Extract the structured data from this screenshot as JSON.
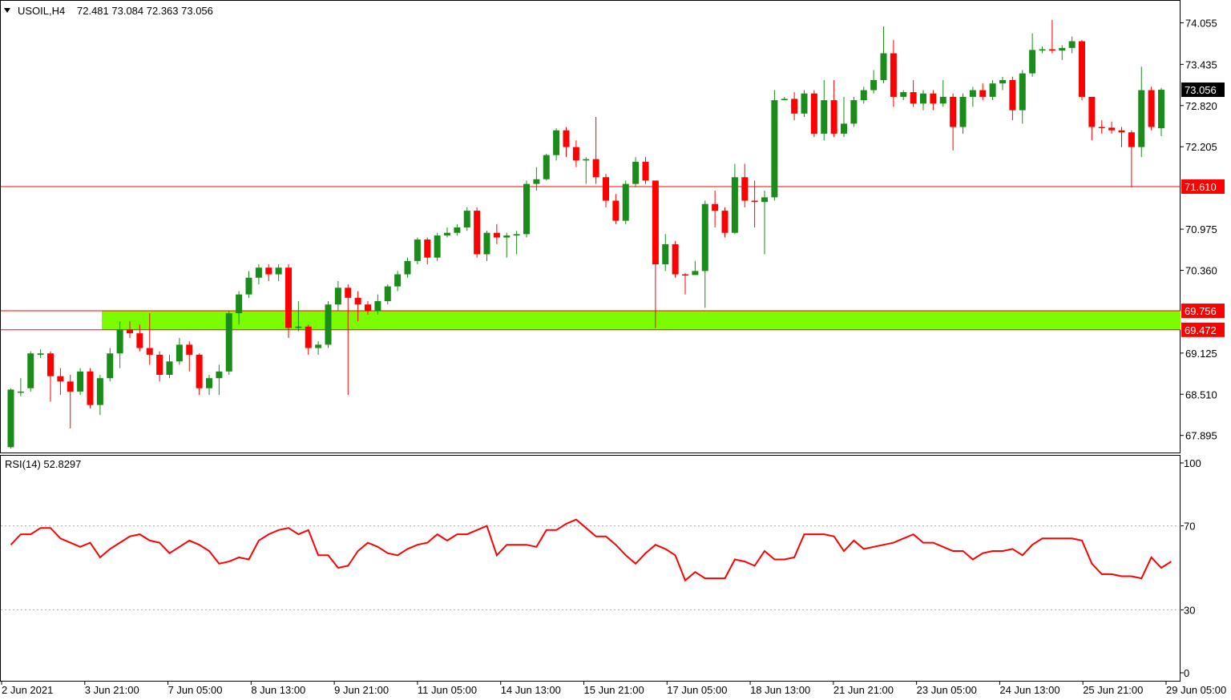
{
  "header": {
    "symbol": "USOIL,H4",
    "ohlc": "72.481 73.084 72.363 73.056"
  },
  "indicator": {
    "label": "RSI(14) 52.8297"
  },
  "colors": {
    "bull": "#1a8c1a",
    "bear": "#ff0000",
    "zone": "#7cfc00",
    "level_line": "#ff0000",
    "rsi_line": "#ff0000",
    "current_price_tag": "#000000"
  },
  "chart_data": [
    {
      "type": "candlestick",
      "title": "USOIL,H4",
      "price_axis": {
        "ticks": [
          "74.055",
          "73.435",
          "72.820",
          "72.205",
          "70.975",
          "70.360",
          "69.125",
          "68.510",
          "67.895"
        ],
        "range": [
          67.7,
          74.3
        ]
      },
      "time_axis": {
        "labels": [
          "2 Jun 2021",
          "3 Jun 21:00",
          "7 Jun 05:00",
          "8 Jun 13:00",
          "9 Jun 21:00",
          "11 Jun 05:00",
          "14 Jun 13:00",
          "15 Jun 21:00",
          "17 Jun 05:00",
          "18 Jun 13:00",
          "21 Jun 21:00",
          "23 Jun 05:00",
          "24 Jun 13:00",
          "25 Jun 21:00",
          "29 Jun 05:00"
        ]
      },
      "levels": [
        {
          "price": 71.61,
          "label": "71.610"
        }
      ],
      "zone": {
        "high": 69.756,
        "low": 69.472,
        "high_label": "69.756",
        "low_label": "69.472"
      },
      "current_price": {
        "value": 73.056,
        "label": "73.056"
      },
      "candles": [
        [
          67.72,
          68.58,
          67.7,
          68.6
        ],
        [
          68.55,
          68.55,
          68.48,
          68.75
        ],
        [
          68.6,
          69.12,
          68.55,
          69.15
        ],
        [
          69.1,
          69.12,
          69.05,
          69.18
        ],
        [
          69.12,
          68.78,
          68.4,
          69.15
        ],
        [
          68.78,
          68.7,
          68.5,
          68.9
        ],
        [
          68.7,
          68.55,
          68.0,
          68.8
        ],
        [
          68.55,
          68.85,
          68.5,
          68.9
        ],
        [
          68.85,
          68.35,
          68.3,
          68.9
        ],
        [
          68.35,
          68.75,
          68.2,
          68.8
        ],
        [
          68.75,
          69.12,
          68.7,
          69.2
        ],
        [
          69.12,
          69.48,
          68.9,
          69.6
        ],
        [
          69.48,
          69.42,
          69.35,
          69.6
        ],
        [
          69.42,
          69.2,
          69.15,
          69.55
        ],
        [
          69.2,
          69.1,
          68.95,
          69.72
        ],
        [
          69.1,
          68.8,
          68.7,
          69.15
        ],
        [
          68.8,
          69.0,
          68.75,
          69.1
        ],
        [
          69.0,
          69.25,
          68.95,
          69.35
        ],
        [
          69.25,
          69.1,
          68.85,
          69.3
        ],
        [
          69.1,
          68.6,
          68.5,
          69.12
        ],
        [
          68.6,
          68.75,
          68.5,
          68.8
        ],
        [
          68.75,
          68.85,
          68.5,
          68.95
        ],
        [
          68.85,
          69.72,
          68.8,
          69.75
        ],
        [
          69.72,
          70.0,
          69.55,
          70.05
        ],
        [
          70.0,
          70.25,
          69.95,
          70.35
        ],
        [
          70.25,
          70.4,
          70.15,
          70.45
        ],
        [
          70.4,
          70.3,
          70.2,
          70.45
        ],
        [
          70.3,
          70.4,
          70.2,
          70.45
        ],
        [
          70.4,
          69.5,
          69.35,
          70.45
        ],
        [
          69.5,
          69.52,
          69.45,
          69.9
        ],
        [
          69.52,
          69.2,
          69.1,
          69.55
        ],
        [
          69.2,
          69.25,
          69.1,
          69.3
        ],
        [
          69.25,
          69.85,
          69.2,
          69.9
        ],
        [
          69.85,
          70.1,
          69.75,
          70.2
        ],
        [
          70.1,
          69.95,
          68.5,
          70.15
        ],
        [
          69.95,
          69.85,
          69.6,
          70.05
        ],
        [
          69.85,
          69.75,
          69.7,
          69.9
        ],
        [
          69.75,
          69.9,
          69.7,
          70.0
        ],
        [
          69.9,
          70.12,
          69.85,
          70.15
        ],
        [
          70.12,
          70.3,
          70.05,
          70.35
        ],
        [
          70.3,
          70.5,
          70.25,
          70.55
        ],
        [
          70.5,
          70.82,
          70.45,
          70.85
        ],
        [
          70.82,
          70.55,
          70.45,
          70.85
        ],
        [
          70.55,
          70.88,
          70.5,
          70.92
        ],
        [
          70.88,
          70.92,
          70.85,
          71.0
        ],
        [
          70.92,
          71.0,
          70.88,
          71.05
        ],
        [
          71.0,
          71.25,
          70.95,
          71.3
        ],
        [
          71.25,
          70.6,
          70.55,
          71.3
        ],
        [
          70.6,
          70.92,
          70.5,
          70.95
        ],
        [
          70.92,
          70.85,
          70.75,
          71.05
        ],
        [
          70.85,
          70.88,
          70.55,
          70.92
        ],
        [
          70.88,
          70.9,
          70.6,
          70.95
        ],
        [
          70.9,
          71.65,
          70.85,
          71.7
        ],
        [
          71.65,
          71.72,
          71.55,
          71.9
        ],
        [
          71.72,
          72.08,
          71.7,
          72.1
        ],
        [
          72.08,
          72.45,
          72.0,
          72.48
        ],
        [
          72.45,
          72.2,
          72.05,
          72.5
        ],
        [
          72.2,
          72.0,
          71.9,
          72.3
        ],
        [
          72.0,
          72.02,
          71.65,
          72.05
        ],
        [
          72.02,
          71.75,
          71.65,
          72.65
        ],
        [
          71.75,
          71.4,
          71.3,
          71.8
        ],
        [
          71.4,
          71.1,
          71.05,
          71.5
        ],
        [
          71.1,
          71.65,
          71.05,
          71.7
        ],
        [
          71.65,
          71.98,
          71.6,
          72.05
        ],
        [
          71.98,
          71.7,
          71.65,
          72.05
        ],
        [
          71.7,
          70.45,
          69.5,
          71.7
        ],
        [
          70.45,
          70.75,
          70.35,
          70.9
        ],
        [
          70.75,
          70.3,
          70.25,
          70.8
        ],
        [
          70.3,
          70.29,
          70.0,
          70.32
        ],
        [
          70.29,
          70.35,
          70.3,
          70.5
        ],
        [
          70.35,
          71.35,
          69.8,
          71.4
        ],
        [
          71.35,
          71.25,
          71.0,
          71.55
        ],
        [
          71.25,
          70.92,
          70.85,
          71.3
        ],
        [
          70.92,
          71.75,
          70.9,
          71.95
        ],
        [
          71.75,
          71.4,
          71.3,
          71.95
        ],
        [
          71.4,
          71.38,
          71.0,
          71.7
        ],
        [
          71.38,
          71.45,
          70.6,
          71.55
        ],
        [
          71.45,
          72.9,
          71.4,
          73.05
        ],
        [
          72.9,
          72.92,
          72.9,
          72.95
        ],
        [
          72.92,
          72.7,
          72.6,
          73.02
        ],
        [
          72.7,
          73.0,
          72.65,
          73.05
        ],
        [
          73.0,
          72.4,
          72.35,
          73.05
        ],
        [
          72.4,
          72.9,
          72.3,
          73.2
        ],
        [
          72.9,
          72.4,
          72.35,
          73.2
        ],
        [
          72.4,
          72.55,
          72.35,
          72.95
        ],
        [
          72.55,
          72.9,
          72.5,
          72.95
        ],
        [
          72.9,
          73.05,
          72.85,
          73.1
        ],
        [
          73.05,
          73.2,
          73.0,
          73.35
        ],
        [
          73.2,
          73.6,
          73.15,
          74.0
        ],
        [
          73.6,
          72.95,
          72.8,
          73.8
        ],
        [
          72.95,
          73.02,
          72.9,
          73.05
        ],
        [
          73.02,
          72.85,
          72.8,
          73.2
        ],
        [
          72.85,
          73.0,
          72.75,
          73.05
        ],
        [
          73.0,
          72.85,
          72.75,
          73.05
        ],
        [
          72.85,
          72.95,
          72.8,
          73.2
        ],
        [
          72.95,
          72.5,
          72.15,
          73.0
        ],
        [
          72.5,
          72.95,
          72.4,
          73.0
        ],
        [
          72.95,
          73.05,
          72.8,
          73.1
        ],
        [
          73.05,
          72.95,
          72.9,
          73.15
        ],
        [
          72.95,
          73.15,
          72.9,
          73.2
        ],
        [
          73.15,
          73.2,
          73.05,
          73.25
        ],
        [
          73.2,
          72.75,
          72.6,
          73.25
        ],
        [
          72.75,
          73.3,
          72.55,
          73.35
        ],
        [
          73.3,
          73.65,
          73.25,
          73.9
        ],
        [
          73.65,
          73.66,
          73.6,
          73.7
        ],
        [
          73.66,
          73.64,
          73.6,
          74.1
        ],
        [
          73.64,
          73.68,
          73.5,
          73.72
        ],
        [
          73.68,
          73.78,
          73.6,
          73.85
        ],
        [
          73.78,
          72.95,
          72.9,
          73.8
        ],
        [
          72.95,
          72.5,
          72.3,
          72.95
        ],
        [
          72.5,
          72.49,
          72.4,
          72.6
        ],
        [
          72.49,
          72.45,
          72.4,
          72.58
        ],
        [
          72.45,
          72.42,
          72.2,
          72.5
        ],
        [
          72.42,
          72.2,
          71.6,
          72.45
        ],
        [
          72.2,
          73.05,
          72.05,
          73.4
        ],
        [
          73.05,
          72.5,
          72.45,
          73.1
        ],
        [
          72.481,
          73.056,
          72.363,
          73.084
        ]
      ]
    },
    {
      "type": "line",
      "title": "RSI(14) 52.8297",
      "ylim": [
        0,
        100
      ],
      "ticks": [
        "100",
        "70",
        "30",
        "0"
      ],
      "levels": [
        70,
        30
      ],
      "series": [
        {
          "name": "RSI(14)",
          "values": [
            61,
            66,
            66,
            69,
            69,
            64,
            62,
            60,
            62,
            55,
            59,
            62,
            65,
            66,
            63,
            62,
            57,
            60,
            63,
            61,
            58,
            52,
            53,
            55,
            54,
            63,
            66,
            68,
            69,
            66,
            68,
            56,
            56,
            50,
            51,
            58,
            62,
            60,
            57,
            56,
            59,
            61,
            62,
            66,
            63,
            66,
            66,
            68,
            70,
            56,
            61,
            61,
            61,
            60,
            68,
            68,
            71,
            73,
            69,
            65,
            65,
            61,
            56,
            52,
            57,
            61,
            59,
            56,
            44,
            48,
            45,
            45,
            45,
            54,
            53,
            51,
            58,
            54,
            54,
            55,
            66,
            66,
            66,
            65,
            58,
            63,
            59,
            60,
            61,
            62,
            64,
            66,
            62,
            62,
            60,
            58,
            58,
            54,
            57,
            58,
            58,
            59,
            56,
            61,
            64,
            64,
            64,
            64,
            63,
            52,
            47,
            47,
            46,
            46,
            45,
            55,
            50,
            53
          ]
        }
      ]
    }
  ]
}
